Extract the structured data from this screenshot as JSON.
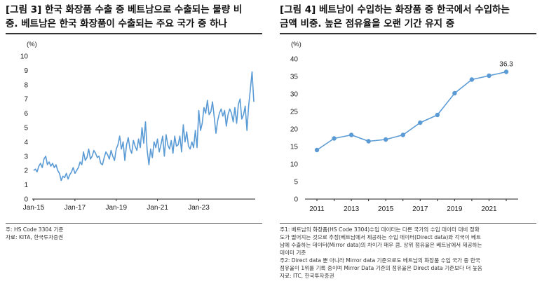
{
  "chart_data": [
    {
      "type": "line",
      "title_lines": [
        "[그림 3] 한국 화장품 수출 중 베트남으로 수출되는 물량 비",
        "중. 베트남은 한국 화장품이 수출되는 주요 국가 중 하나"
      ],
      "unit": "(%)",
      "ylim": [
        0,
        10
      ],
      "yticks": [
        "0",
        "1",
        "2",
        "3",
        "4",
        "5",
        "6",
        "7",
        "8",
        "9",
        "10"
      ],
      "xticks": [
        {
          "label": "Jan-15",
          "t": 0
        },
        {
          "label": "Jan-17",
          "t": 24
        },
        {
          "label": "Jan-19",
          "t": 48
        },
        {
          "label": "Jan-21",
          "t": 72
        },
        {
          "label": "Jan-23",
          "t": 96
        }
      ],
      "grid": false,
      "series": [
        {
          "x_start": "Jan-15",
          "values": [
            2.0,
            2.1,
            1.9,
            2.3,
            2.5,
            2.2,
            2.8,
            3.0,
            2.4,
            2.6,
            2.3,
            2.5,
            2.2,
            2.4,
            2.0,
            1.8,
            1.3,
            1.6,
            1.5,
            1.8,
            1.4,
            1.7,
            1.9,
            2.2,
            1.8,
            2.0,
            2.2,
            2.6,
            2.4,
            3.3,
            2.7,
            2.9,
            3.5,
            2.8,
            3.0,
            3.4,
            3.2,
            2.9,
            3.0,
            2.5,
            2.4,
            2.9,
            3.3,
            3.1,
            2.8,
            3.4,
            3.0,
            2.7,
            3.5,
            3.8,
            4.4,
            3.5,
            4.0,
            2.7,
            3.8,
            4.3,
            3.5,
            3.2,
            4.1,
            3.7,
            3.4,
            4.2,
            3.6,
            5.0,
            3.9,
            5.4,
            3.4,
            2.4,
            3.5,
            2.9,
            4.0,
            3.6,
            4.2,
            3.3,
            3.8,
            4.4,
            3.0,
            4.5,
            3.8,
            3.5,
            4.1,
            3.2,
            4.4,
            3.7,
            3.8,
            4.4,
            3.3,
            5.2,
            4.0,
            4.7,
            3.7,
            3.5,
            4.0,
            3.6,
            4.8,
            3.6,
            6.2,
            4.8,
            5.3,
            6.4,
            6.0,
            6.9,
            5.9,
            6.1,
            6.8,
            5.7,
            4.6,
            5.5,
            6.0,
            6.3,
            5.8,
            6.2,
            5.1,
            5.9,
            6.3,
            6.0,
            5.4,
            6.4,
            5.3,
            6.6,
            7.0,
            5.6,
            5.9,
            6.5,
            4.8,
            6.5,
            7.7,
            8.9,
            6.8
          ]
        }
      ],
      "color": "#5b9bd5"
    },
    {
      "type": "line",
      "title_lines": [
        "[그림 4] 베트남이 수입하는 화장품 중 한국에서 수입하는",
        "금액 비중. 높은 점유율을 오랜 기간 유지 중"
      ],
      "unit": "(%)",
      "ylim": [
        0,
        40
      ],
      "yticks": [
        "0",
        "5",
        "10",
        "15",
        "20",
        "25",
        "30",
        "35",
        "40"
      ],
      "categories": [
        "2011",
        "2012",
        "2013",
        "2014",
        "2015",
        "2016",
        "2017",
        "2018",
        "2019",
        "2020",
        "2021",
        "2022"
      ],
      "xtick_labels": [
        "2011",
        "2013",
        "2015",
        "2017",
        "2019",
        "2021"
      ],
      "grid": false,
      "series": [
        {
          "values": [
            14.0,
            17.3,
            18.3,
            16.5,
            17.0,
            18.3,
            21.8,
            24.0,
            30.2,
            34.1,
            35.2,
            36.3
          ]
        }
      ],
      "data_labels": [
        "36.3"
      ],
      "color": "#5b9bd5"
    }
  ],
  "notes_left": [
    "주: HS Code 3304 기준",
    "자료: KITA, 한국투자증권"
  ],
  "notes_right": [
    "주1: 베트남의 화장품(HS Code 3304)수입 데이터는 다른 국가의 수입 데이터 대비 정확",
    "도가 떨어지는 것으로 추정(베트남에서 제공하는 수입 데이터(Direct data)와 각국이 베트",
    "남에 수출하는 데이터(Mirror data)의 차이가 매우 큼. 상위 점유율은 베트남에서 제공하는",
    "데이터 기준",
    "주2: Direct data 뿐 아니라 Mirror data 기준으로도 베트남의 화장품 수입 국가 중 한국",
    "점유율이 1위를 기록 중이며 Mirror Data 기준의 점유율은 Direct data 기준보다 더 높음",
    "자료: ITC, 한국투자증권"
  ]
}
